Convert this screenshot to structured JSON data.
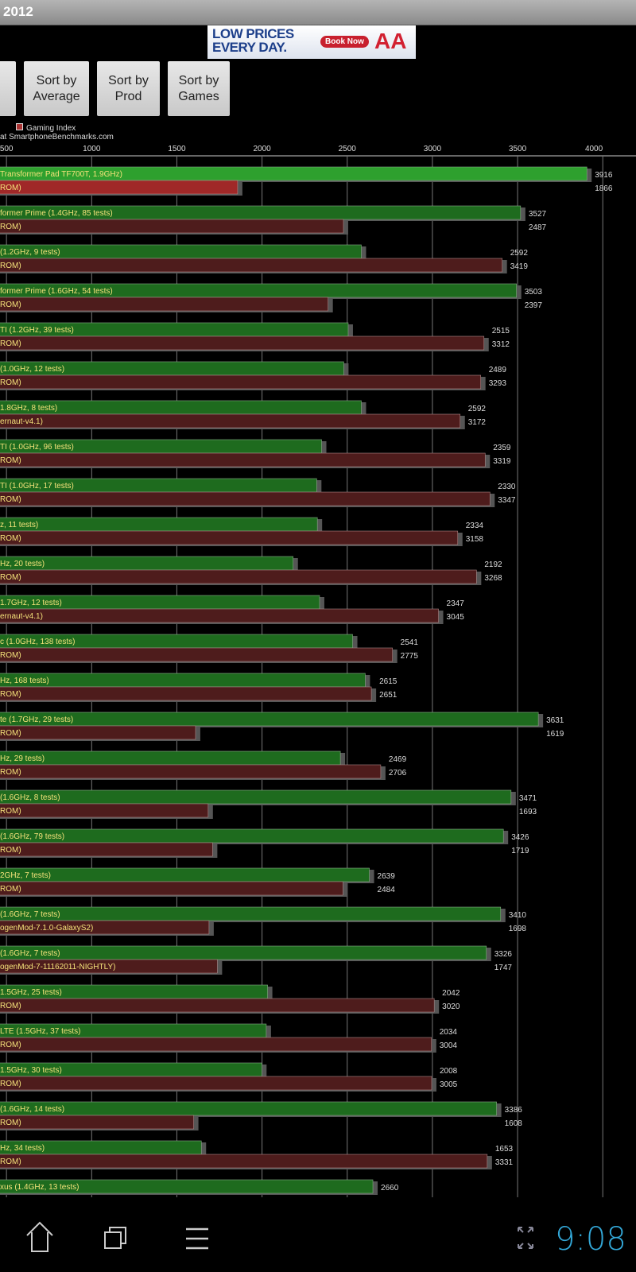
{
  "title": "2012",
  "ad": {
    "line1": "LOW PRICES",
    "line2": "EVERY DAY.",
    "button": "Book Now",
    "logo": "AA"
  },
  "buttons": [
    {
      "label": "Sort by\nAverage"
    },
    {
      "label": "Sort by\nProd"
    },
    {
      "label": "Sort by\nGames"
    }
  ],
  "legend": {
    "label": "Gaming Index",
    "source": "at SmartphoneBenchmarks.com"
  },
  "status": {
    "time": "9:08"
  },
  "colors": {
    "green": "#1e6b1e",
    "green_top": "#2ea02e",
    "red": "#4e1c1c",
    "red_top": "#a02828",
    "accent": "#33a8d8"
  },
  "chart_data": {
    "type": "bar",
    "orientation": "horizontal",
    "xlim": [
      0,
      4000
    ],
    "grid": true,
    "ticks": [
      "500",
      "1000",
      "1500",
      "2000",
      "2500",
      "3000",
      "3500",
      "4000"
    ],
    "legend_position": "top-left",
    "series": [
      {
        "name": "(cut off)",
        "color": "green"
      },
      {
        "name": "Gaming Index",
        "color": "red"
      }
    ],
    "rows": [
      {
        "g": "Transformer Pad TF700T, 1.9GHz)",
        "r": "ROM)",
        "gv": 3916,
        "rv": 1866
      },
      {
        "g": "former Prime (1.4GHz, 85 tests)",
        "r": "ROM)",
        "gv": 3527,
        "rv": 2487
      },
      {
        "g": "(1.2GHz, 9 tests)",
        "r": "ROM)",
        "gv": 2592,
        "rv": 3419
      },
      {
        "g": "former Prime (1.6GHz, 54 tests)",
        "r": "ROM)",
        "gv": 3503,
        "rv": 2397
      },
      {
        "g": "TI (1.2GHz, 39 tests)",
        "r": "ROM)",
        "gv": 2515,
        "rv": 3312
      },
      {
        "g": "(1.0GHz, 12 tests)",
        "r": "ROM)",
        "gv": 2489,
        "rv": 3293
      },
      {
        "g": "1.8GHz, 8 tests)",
        "r": "ernaut-v4.1)",
        "gv": 2592,
        "rv": 3172
      },
      {
        "g": "TI (1.0GHz, 96 tests)",
        "r": "ROM)",
        "gv": 2359,
        "rv": 3319
      },
      {
        "g": "TI (1.0GHz, 17 tests)",
        "r": "ROM)",
        "gv": 2330,
        "rv": 3347
      },
      {
        "g": "z, 11 tests)",
        "r": "ROM)",
        "gv": 2334,
        "rv": 3158
      },
      {
        "g": "Hz, 20 tests)",
        "r": "ROM)",
        "gv": 2192,
        "rv": 3268
      },
      {
        "g": "1.7GHz, 12 tests)",
        "r": "ernaut-v4.1)",
        "gv": 2347,
        "rv": 3045
      },
      {
        "g": "c (1.0GHz, 138 tests)",
        "r": "ROM)",
        "gv": 2541,
        "rv": 2775
      },
      {
        "g": "Hz, 168 tests)",
        "r": "ROM)",
        "gv": 2615,
        "rv": 2651
      },
      {
        "g": "te (1.7GHz, 29 tests)",
        "r": "ROM)",
        "gv": 3631,
        "rv": 1619
      },
      {
        "g": "Hz, 29 tests)",
        "r": "ROM)",
        "gv": 2469,
        "rv": 2706
      },
      {
        "g": "(1.6GHz, 8 tests)",
        "r": "ROM)",
        "gv": 3471,
        "rv": 1693
      },
      {
        "g": "(1.6GHz, 79 tests)",
        "r": "ROM)",
        "gv": 3426,
        "rv": 1719
      },
      {
        "g": "2GHz, 7 tests)",
        "r": "ROM)",
        "gv": 2639,
        "rv": 2484
      },
      {
        "g": "(1.6GHz, 7 tests)",
        "r": "ogenMod-7.1.0-GalaxyS2)",
        "gv": 3410,
        "rv": 1698
      },
      {
        "g": "(1.6GHz, 7 tests)",
        "r": "ogenMod-7-11162011-NIGHTLY)",
        "gv": 3326,
        "rv": 1747
      },
      {
        "g": "1.5GHz, 25 tests)",
        "r": "ROM)",
        "gv": 2042,
        "rv": 3020
      },
      {
        "g": "LTE (1.5GHz, 37 tests)",
        "r": "ROM)",
        "gv": 2034,
        "rv": 3004
      },
      {
        "g": "1.5GHz, 30 tests)",
        "r": "ROM)",
        "gv": 2008,
        "rv": 3005
      },
      {
        "g": "(1.6GHz, 14 tests)",
        "r": "ROM)",
        "gv": 3386,
        "rv": 1608
      },
      {
        "g": "Hz, 34 tests)",
        "r": "ROM)",
        "gv": 1653,
        "rv": 3331
      },
      {
        "g": "xus (1.4GHz, 13 tests)",
        "r": null,
        "gv": 2660,
        "rv": null
      }
    ]
  }
}
